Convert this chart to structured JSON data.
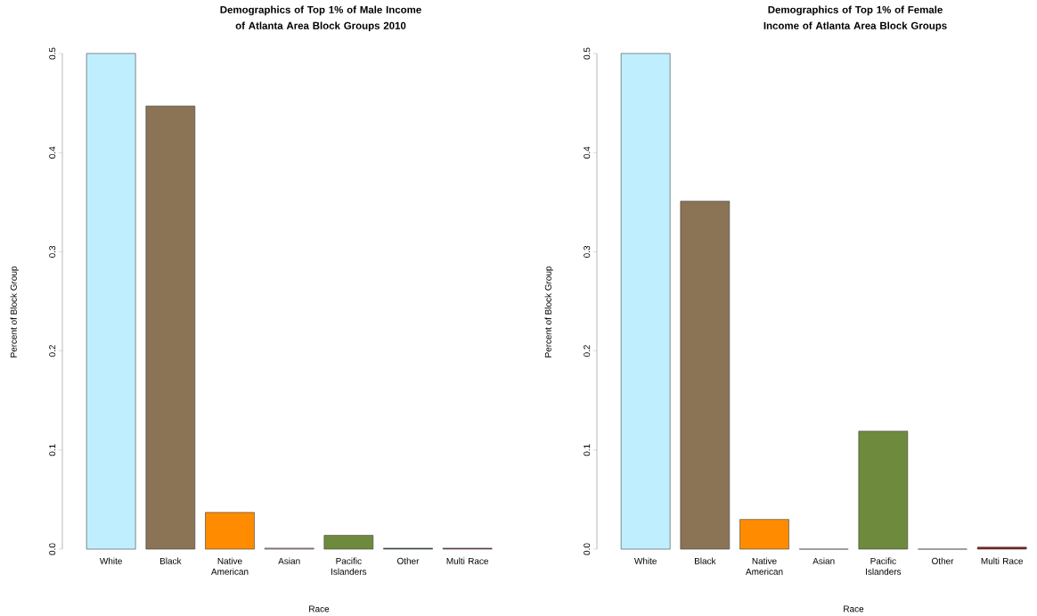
{
  "chart_data": [
    {
      "type": "bar",
      "title": "Demographics of Top 1% of Male Income of Atlanta Area Block Groups 2010",
      "xlabel": "Race",
      "ylabel": "Percent of Block Group",
      "categories": [
        "White",
        "Black",
        "Native American",
        "Asian",
        "Pacific Islanders",
        "Other",
        "Multi Race"
      ],
      "values": [
        0.5,
        0.447,
        0.037,
        0.001,
        0.014,
        0.001,
        0.001
      ],
      "colors": [
        "#bfefff",
        "#8b7355",
        "#ff8c00",
        "#cd919e",
        "#6e8b3d",
        "#2f4f4f",
        "#8b3a3a"
      ],
      "ylim": [
        0,
        0.5
      ],
      "yticks": [
        {
          "value": 0,
          "label": "0.0"
        },
        0.1,
        0.2,
        0.3,
        0.4,
        0.5
      ]
    },
    {
      "type": "bar",
      "title": "Demographics of Top 1% of Female Income of Atlanta Area Block Groups",
      "xlabel": "Race",
      "ylabel": "Percent of Block Group",
      "categories": [
        "White",
        "Black",
        "Native American",
        "Asian",
        "Pacific Islanders",
        "Other",
        "Multi Race"
      ],
      "values": [
        0.5,
        0.351,
        0.03,
        0,
        0.119,
        0,
        0.002
      ],
      "colors": [
        "#bfefff",
        "#8b7355",
        "#ff8c00",
        "#cd919e",
        "#6e8b3d",
        "#2f4f4f",
        "#8b1a1a"
      ],
      "ylim": [
        0,
        0.5
      ],
      "yticks": [
        {
          "value": 0,
          "label": "0.0"
        },
        0.1,
        0.2,
        0.3,
        0.4,
        0.5
      ]
    }
  ]
}
